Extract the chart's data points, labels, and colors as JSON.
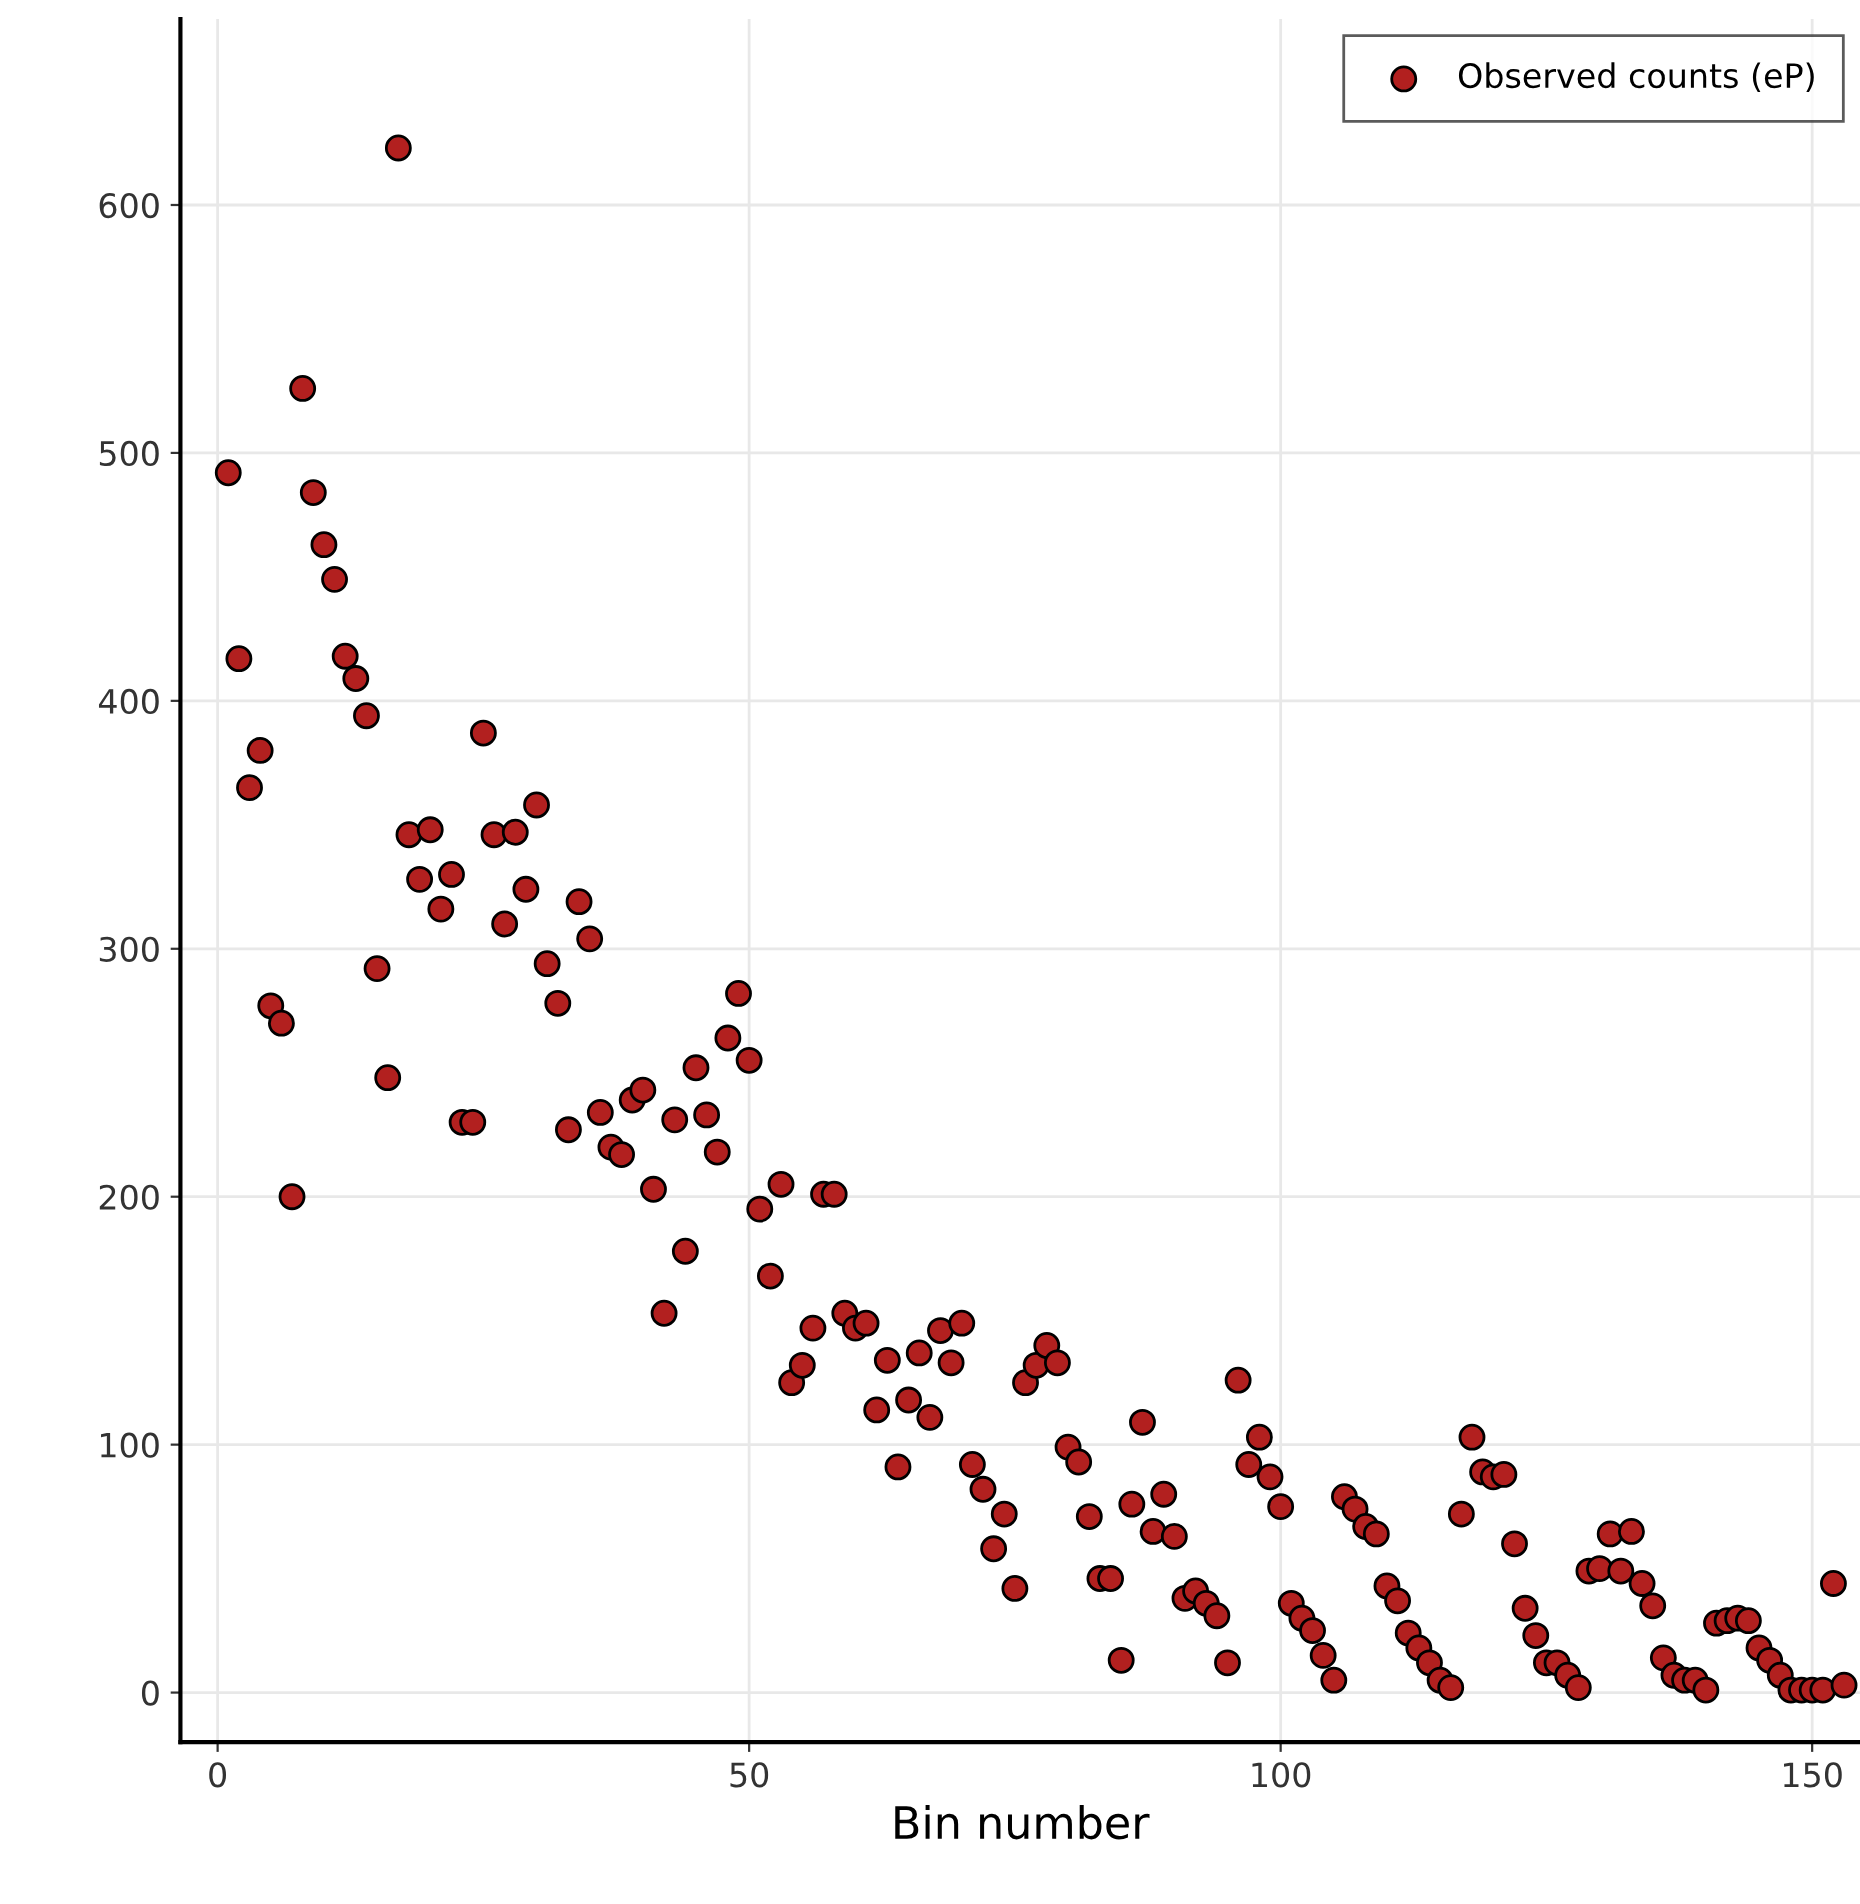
{
  "chart_data": {
    "type": "scatter",
    "xlabel": "Bin number",
    "legend": "top right",
    "grid": true,
    "marker": "circle",
    "xlim": [
      -3.5,
      154.5
    ],
    "ylim": [
      -20,
      675
    ],
    "xticks": [
      0,
      50,
      100,
      150
    ],
    "yticks": [
      0,
      100,
      200,
      300,
      400,
      500,
      600
    ],
    "series": [
      {
        "name": "Observed counts (eP)",
        "color": "#b2201f",
        "x": [
          1,
          2,
          3,
          4,
          5,
          6,
          7,
          8,
          9,
          10,
          11,
          12,
          13,
          14,
          15,
          16,
          17,
          18,
          19,
          20,
          21,
          22,
          23,
          24,
          25,
          26,
          27,
          28,
          29,
          30,
          31,
          32,
          33,
          34,
          35,
          36,
          37,
          38,
          39,
          40,
          41,
          42,
          43,
          44,
          45,
          46,
          47,
          48,
          49,
          50,
          51,
          52,
          53,
          54,
          55,
          56,
          57,
          58,
          59,
          60,
          61,
          62,
          63,
          64,
          65,
          66,
          67,
          68,
          69,
          70,
          71,
          72,
          73,
          74,
          75,
          76,
          77,
          78,
          79,
          80,
          81,
          82,
          83,
          84,
          85,
          86,
          87,
          88,
          89,
          90,
          91,
          92,
          93,
          94,
          95,
          96,
          97,
          98,
          99,
          100,
          101,
          102,
          103,
          104,
          105,
          106,
          107,
          108,
          109,
          110,
          111,
          112,
          113,
          114,
          115,
          116,
          117,
          118,
          119,
          120,
          121,
          122,
          123,
          124,
          125,
          126,
          127,
          128,
          129,
          130,
          131,
          132,
          133,
          134,
          135,
          136,
          137,
          138,
          139,
          140,
          141,
          142,
          143,
          144,
          145,
          146,
          147,
          148,
          149,
          150,
          151,
          152,
          153
        ],
        "values": [
          492,
          417,
          365,
          380,
          277,
          270,
          200,
          526,
          484,
          463,
          449,
          418,
          409,
          394,
          292,
          248,
          623,
          346,
          328,
          348,
          316,
          330,
          230,
          230,
          387,
          346,
          310,
          347,
          324,
          358,
          294,
          278,
          227,
          319,
          304,
          234,
          220,
          217,
          239,
          243,
          203,
          153,
          231,
          178,
          252,
          233,
          218,
          264,
          282,
          255,
          195,
          168,
          205,
          125,
          132,
          147,
          201,
          201,
          153,
          147,
          149,
          114,
          134,
          91,
          118,
          137,
          111,
          146,
          133,
          149,
          92,
          82,
          58,
          72,
          42,
          125,
          132,
          140,
          133,
          99,
          93,
          71,
          46,
          46,
          13,
          76,
          109,
          65,
          80,
          63,
          38,
          41,
          36,
          31,
          12,
          126,
          92,
          103,
          87,
          75,
          36,
          30,
          25,
          15,
          5,
          79,
          74,
          67,
          64,
          43,
          37,
          24,
          18,
          12,
          5,
          2,
          72,
          103,
          89,
          87,
          88,
          60,
          34,
          23,
          12,
          12,
          7,
          2,
          49,
          50,
          64,
          49,
          65,
          44,
          35,
          14,
          7,
          5,
          5,
          1,
          28,
          29,
          30,
          29,
          18,
          13,
          7,
          1,
          1,
          1,
          1,
          44,
          3
        ]
      }
    ]
  }
}
